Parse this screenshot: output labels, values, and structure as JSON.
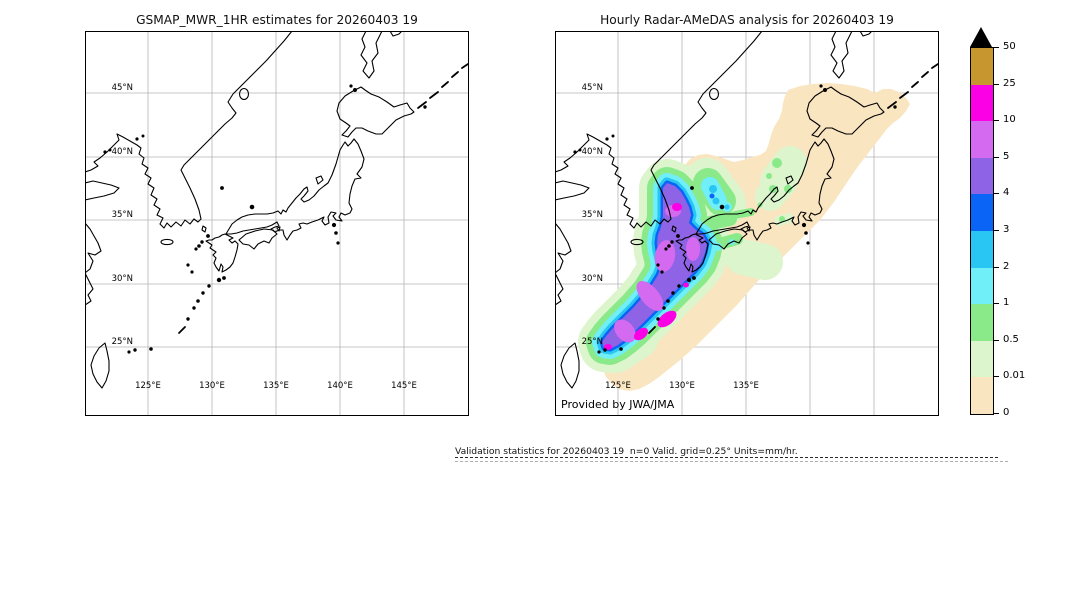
{
  "figure": {
    "panels": {
      "left": {
        "title": "GSMAP_MWR_1HR estimates for 20260403 19",
        "lat_labels": [
          "45°N",
          "40°N",
          "35°N",
          "30°N",
          "25°N"
        ],
        "lon_labels": [
          "125°E",
          "130°E",
          "135°E",
          "140°E",
          "145°E"
        ]
      },
      "right": {
        "title": "Hourly Radar-AMeDAS analysis for 20260403 19",
        "lat_labels": [
          "45°N",
          "40°N",
          "35°N",
          "30°N",
          "25°N"
        ],
        "lon_labels": [
          "125°E",
          "130°E",
          "135°E"
        ],
        "credit": "Provided by JWA/JMA"
      }
    },
    "colorbar": {
      "tick_labels": [
        "50",
        "25",
        "10",
        "5",
        "4",
        "3",
        "2",
        "1",
        "0.5",
        "0.01",
        "0"
      ],
      "segment_colors_top_to_bottom": [
        "#C8962E",
        "#FB00E4",
        "#D46AEF",
        "#8F63E6",
        "#0A64F5",
        "#2AC6F3",
        "#70EFF8",
        "#8AEA8A",
        "#DCF5CD",
        "#FAE5C1"
      ],
      "overflow_marker_color": "#000000"
    },
    "caption": "Validation statistics for 20260403 19  n=0 Valid. grid=0.25° Units=mm/hr."
  },
  "chart_data": {
    "type": "heatmap",
    "title": [
      "GSMAP_MWR_1HR estimates for 20260403 19",
      "Hourly Radar-AMeDAS analysis for 20260403 19"
    ],
    "units": "mm/hr",
    "levels_mm_per_hr": [
      0,
      0.01,
      0.5,
      1,
      2,
      3,
      4,
      5,
      10,
      25,
      50
    ],
    "level_colors_low_to_high": [
      "#FAE5C1",
      "#DCF5CD",
      "#8AEA8A",
      "#70EFF8",
      "#2AC6F3",
      "#0A64F5",
      "#8F63E6",
      "#D46AEF",
      "#FB00E4",
      "#C8962E"
    ],
    "overflow_color": "#000000",
    "map_extent": {
      "lon_min": 120,
      "lon_max": 150,
      "lat_min": 20,
      "lat_max": 50
    },
    "gridline_lons": [
      125,
      130,
      135,
      140,
      145
    ],
    "gridline_lats": [
      25,
      30,
      35,
      40,
      45
    ],
    "left_panel": {
      "description": "GSMAP MWR 1-hour precipitation estimates: no precipitation plotted (n=0 valid grid points), map of Japan region only"
    },
    "right_panel": {
      "description": "Radar-AMeDAS analysed rain band oriented SW-NE from near Okinawa across Kyushu to western Honshu; heaviest cores 10-25 mm/hr southwest of Kyushu and in the Korea Strait; 1-5 mm/hr over Kyushu and the Oki area; light 0-0.5 mm/hr rain spreading over Shikoku, northern Honshu, Hokkaido and the Kurils"
    },
    "validation": {
      "date": "20260403",
      "hour": "19",
      "n": 0,
      "grid": "0.25°",
      "units": "mm/hr"
    }
  }
}
